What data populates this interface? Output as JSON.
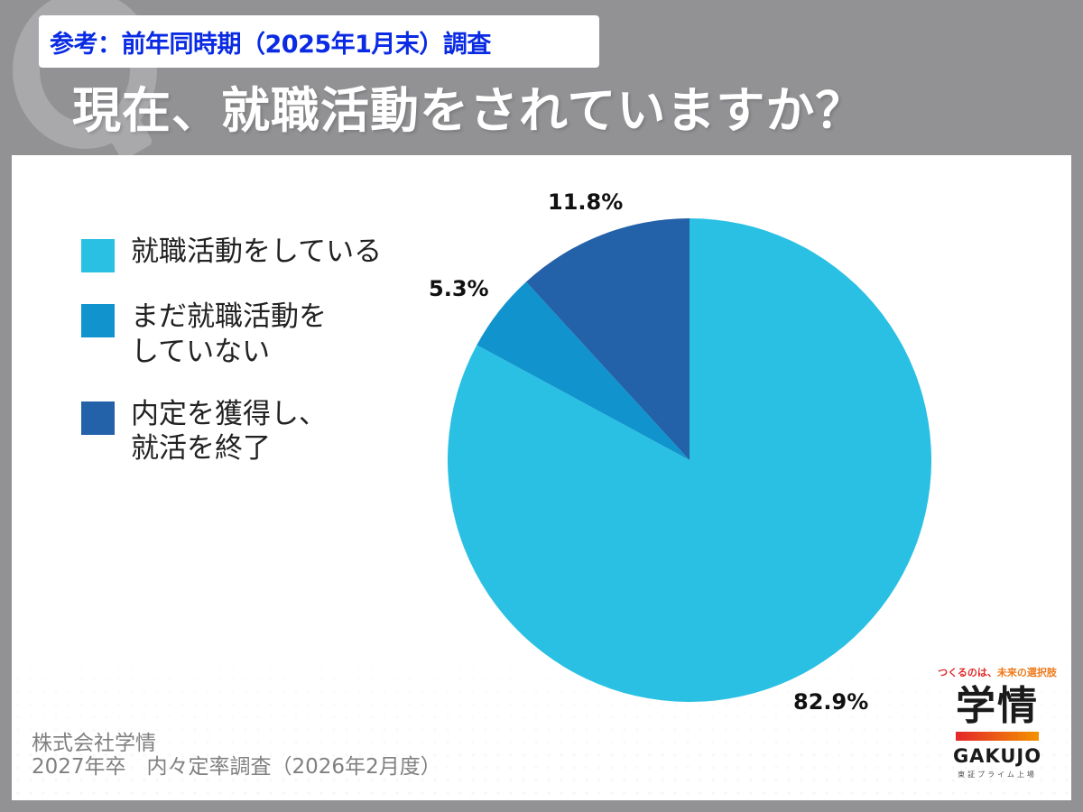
{
  "header": {
    "reference_label": "参考：前年同時期（2025年1月末）調査",
    "title": "現在、就職活動をされていますか？"
  },
  "legend": {
    "items": [
      {
        "label": "就職活動をしている",
        "color": "#29c0e3"
      },
      {
        "label": "まだ就職活動を\nしていない",
        "color": "#1193cd"
      },
      {
        "label": "内定を獲得し、\n就活を終了",
        "color": "#2361a8"
      }
    ]
  },
  "chart_data": {
    "type": "pie",
    "title": "現在、就職活動をされていますか？",
    "subtitle": "参考：前年同時期（2025年1月末）調査",
    "categories": [
      "就職活動をしている",
      "まだ就職活動をしていない",
      "内定を獲得し、就活を終了"
    ],
    "values": [
      82.9,
      5.3,
      11.8
    ],
    "value_labels": [
      "82.9%",
      "5.3%",
      "11.8%"
    ],
    "colors": [
      "#29c0e3",
      "#1193cd",
      "#2361a8"
    ],
    "start_angle_deg": 0,
    "direction": "clockwise",
    "legend_position": "left"
  },
  "source": {
    "line1": "株式会社学情",
    "line2": "2027年卒　内々定率調査（2026年2月度）"
  },
  "logo": {
    "tagline_red": "つくるのは、",
    "tagline_orange": "未来の選択肢",
    "name_jp": "学情",
    "name_en": "GAKUJO",
    "listing": "東証プライム上場"
  },
  "colors": {
    "background": "#929194",
    "reference_text": "#0a2be3",
    "card": "#ffffff"
  }
}
